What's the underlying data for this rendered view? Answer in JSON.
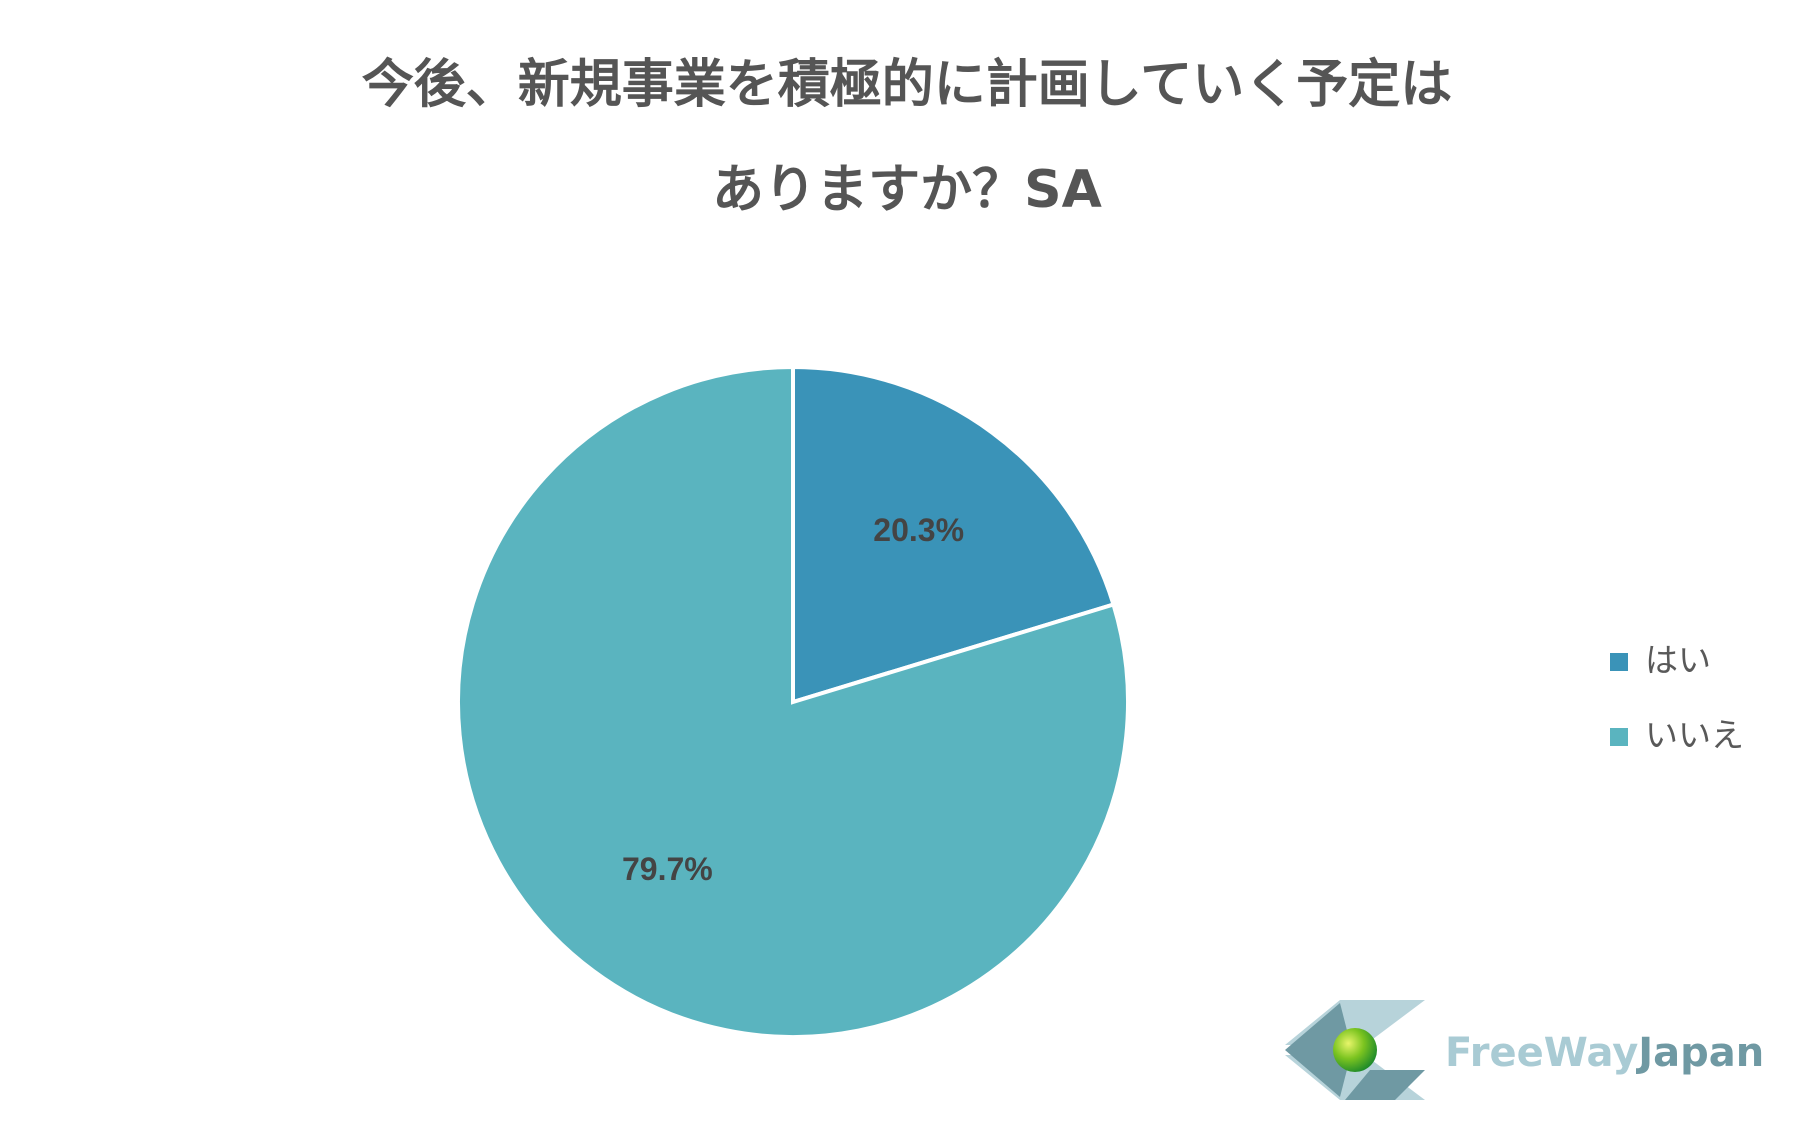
{
  "chart_data": {
    "type": "pie",
    "title": [
      "今後、新規事業を積極的に計画していく予定は",
      "ありますか？SA"
    ],
    "categories": [
      "はい",
      "いいえ"
    ],
    "values": [
      20.3,
      79.7
    ],
    "value_labels": [
      "20.3%",
      "79.7%"
    ],
    "colors": [
      "#3a93b8",
      "#5ab4bf"
    ],
    "legend": "right"
  },
  "logo": [
    "FreeWay",
    "Japan"
  ]
}
